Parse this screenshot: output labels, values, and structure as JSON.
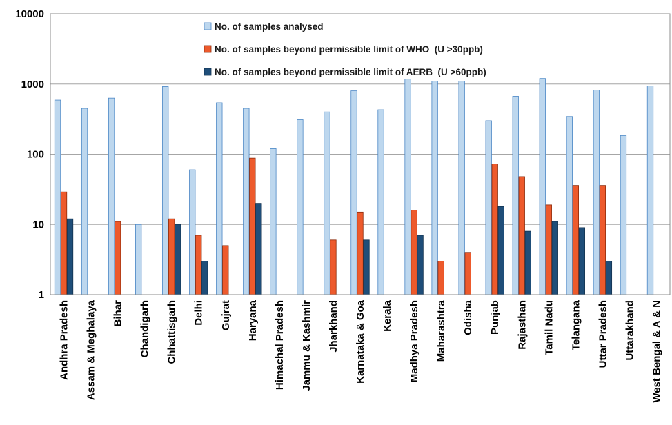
{
  "chart_data": {
    "type": "bar",
    "y_scale": "log",
    "ylim": [
      1,
      10000
    ],
    "y_ticks": [
      "1",
      "10",
      "100",
      "1000",
      "10000"
    ],
    "grid": true,
    "legend_position": "top-center",
    "categories": [
      "Andhra Pradesh",
      "Assam & Meghalaya",
      "Bihar",
      "Chandigarh",
      "Chhattisgarh",
      "Delhi",
      "Gujrat",
      "Haryana",
      "Himachal Pradesh",
      "Jammu & Kashmir",
      "Jharkhand",
      "Karnataka & Goa",
      "Kerala",
      "Madhya Pradesh",
      "Maharashtra",
      "Odisha",
      "Punjab",
      "Rajasthan",
      "Tamil Nadu",
      "Telangana",
      "Uttar Pradesh",
      "Uttarakhand",
      "West Bengal & A & N"
    ],
    "series": [
      {
        "name": "No. of samples analysed",
        "color": "#bdd7ee",
        "stroke": "#4a86c5",
        "values": [
          590,
          450,
          630,
          10,
          920,
          60,
          540,
          450,
          120,
          310,
          400,
          800,
          430,
          1180,
          1100,
          1100,
          300,
          670,
          1200,
          345,
          820,
          185,
          940
        ]
      },
      {
        "name": "No. of samples beyond permissible limit of WHO  (U >30ppb)",
        "color": "#ed5a2c",
        "stroke": "#8b2a0a",
        "values": [
          29,
          null,
          11,
          null,
          12,
          7,
          5,
          88,
          null,
          null,
          6,
          15,
          null,
          16,
          3,
          4,
          73,
          48,
          19,
          36,
          36,
          null,
          null
        ]
      },
      {
        "name": "No. of samples beyond permissible limit of AERB  (U >60ppb)",
        "color": "#1f4e79",
        "stroke": "#13324f",
        "values": [
          12,
          null,
          null,
          null,
          10,
          3,
          null,
          20,
          null,
          null,
          null,
          6,
          null,
          7,
          null,
          null,
          18,
          8,
          11,
          9,
          3,
          null,
          null
        ]
      }
    ]
  }
}
